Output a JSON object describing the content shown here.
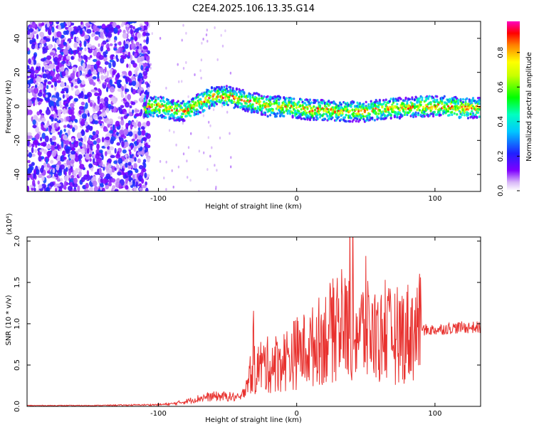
{
  "title": "C2E4.2025.106.13.35.G14",
  "chart_data": [
    {
      "type": "heatmap",
      "title": "C2E4.2025.106.13.35.G14",
      "xlabel": "Height of straight line (km)",
      "ylabel": "Frequency (Hz)",
      "xlim": [
        -195,
        133
      ],
      "ylim": [
        -50,
        50
      ],
      "xticks": [
        -100,
        0,
        100
      ],
      "xtick_labels": [
        "-100",
        "0",
        "100"
      ],
      "yticks": [
        40,
        20,
        0,
        -20,
        -40
      ],
      "ytick_labels": [
        "40",
        "20",
        "0",
        "-20",
        "-40"
      ],
      "colorbar": {
        "label": "Normalized spectral amplitude",
        "range": [
          0,
          0.98
        ],
        "ticks": [
          0.0,
          0.2,
          0.4,
          0.6,
          0.8
        ],
        "tick_labels": [
          "0.0",
          "0.2",
          "0.4",
          "0.6",
          "0.8"
        ],
        "colormap": "rainbow (white-violet-blue-cyan-green-yellow-red-magenta)"
      },
      "ridge": {
        "description": "Peak-frequency trace",
        "x": [
          -110,
          -100,
          -90,
          -80,
          -70,
          -60,
          -50,
          -40,
          -30,
          -20,
          -10,
          0,
          10,
          20,
          30,
          40,
          50,
          60,
          70,
          80,
          90,
          100,
          110,
          120,
          130
        ],
        "frequency": [
          0,
          0,
          -2,
          -3,
          2,
          6,
          6,
          4,
          2,
          0,
          0,
          -1,
          -2,
          -2,
          -3,
          -3,
          -3,
          -2,
          -1,
          -1,
          0,
          0,
          0,
          -1,
          -1
        ]
      }
    },
    {
      "type": "line",
      "xlabel": "Height of straight line (km)",
      "ylabel": "SNR (10 * v/v)",
      "y_multiplier": "(x10⁴)",
      "xlim": [
        -195,
        133
      ],
      "ylim": [
        0,
        2.05
      ],
      "xticks": [
        -100,
        0,
        100
      ],
      "xtick_labels": [
        "-100",
        "0",
        "100"
      ],
      "yticks": [
        0.0,
        0.5,
        1.0,
        1.5,
        2.0
      ],
      "ytick_labels": [
        "0.0",
        "0.5",
        "1.0",
        "1.5",
        "2.0"
      ],
      "series": [
        {
          "color": "#e8312e",
          "x": [
            -195,
            -150,
            -100,
            -90,
            -80,
            -70,
            -60,
            -50,
            -40,
            -35,
            -30,
            -25,
            -20,
            -10,
            0,
            10,
            20,
            30,
            40,
            50,
            60,
            70,
            80,
            90,
            100,
            110,
            120,
            133
          ],
          "values": [
            0.01,
            0.01,
            0.02,
            0.03,
            0.06,
            0.1,
            0.12,
            0.12,
            0.1,
            0.35,
            0.45,
            0.5,
            0.5,
            0.55,
            0.65,
            0.7,
            0.85,
            0.95,
            0.95,
            0.9,
            0.85,
            0.85,
            0.9,
            0.95,
            0.95,
            0.97,
            0.98,
            0.98
          ]
        }
      ]
    }
  ]
}
